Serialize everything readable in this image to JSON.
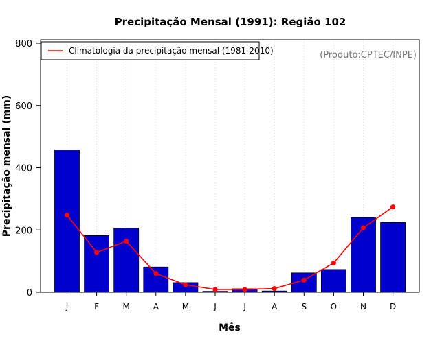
{
  "chart_data": {
    "type": "bar",
    "title": "Precipitação Mensal (1991): Região 102",
    "xlabel": "Mês",
    "ylabel": "Precipitação mensal (mm)",
    "ylim": [
      0,
      800
    ],
    "yticks": [
      0,
      200,
      400,
      600,
      800
    ],
    "categories": [
      "J",
      "F",
      "M",
      "A",
      "M",
      "J",
      "J",
      "A",
      "S",
      "O",
      "N",
      "D"
    ],
    "grid": "vertical dotted",
    "series": [
      {
        "name": "Precipitação mensal 1991",
        "type": "bar",
        "color": "#0000cc",
        "values": [
          457,
          182,
          206,
          81,
          31,
          3,
          11,
          4,
          62,
          73,
          240,
          224
        ]
      },
      {
        "name": "Climatologia da precipitação mensal (1981-2010)",
        "type": "line",
        "color": "#ff0000",
        "values": [
          248,
          128,
          164,
          60,
          24,
          9,
          9,
          12,
          39,
          94,
          207,
          274
        ]
      }
    ],
    "legend": {
      "position": "top-left",
      "label": "Climatologia da precipitação mensal (1981-2010)"
    },
    "annotation": "(Produto:CPTEC/INPE)"
  }
}
